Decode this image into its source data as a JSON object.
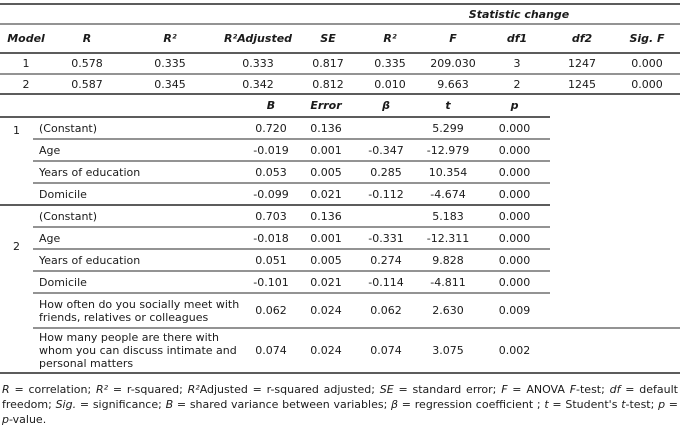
{
  "summary": {
    "stat_change_label": "Statistic change",
    "headers": {
      "model": "Model",
      "r": "R",
      "r2": "R²",
      "r2adj": "R²Adjusted",
      "se": "SE",
      "r2chg": "R²",
      "f": "F",
      "df1": "df1",
      "df2": "df2",
      "sigf": "Sig. F"
    },
    "rows": [
      {
        "model": "1",
        "r": "0.578",
        "r2": "0.335",
        "r2adj": "0.333",
        "se": "0.817",
        "r2chg": "0.335",
        "f": "209.030",
        "df1": "3",
        "df2": "1247",
        "sigf": "0.000"
      },
      {
        "model": "2",
        "r": "0.587",
        "r2": "0.345",
        "r2adj": "0.342",
        "se": "0.812",
        "r2chg": "0.010",
        "f": "9.663",
        "df1": "2",
        "df2": "1245",
        "sigf": "0.000"
      }
    ]
  },
  "coefficients": {
    "headers": {
      "b": "B",
      "error": "Error",
      "beta": "β",
      "t": "t",
      "p": "p"
    },
    "groups": [
      {
        "model": "1",
        "rows": [
          {
            "name": "(Constant)",
            "b": "0.720",
            "error": "0.136",
            "beta": "",
            "t": "5.299",
            "p": "0.000"
          },
          {
            "name": "Age",
            "b": "-0.019",
            "error": "0.001",
            "beta": "-0.347",
            "t": "-12.979",
            "p": "0.000"
          },
          {
            "name": "Years of education",
            "b": "0.053",
            "error": "0.005",
            "beta": "0.285",
            "t": "10.354",
            "p": "0.000"
          },
          {
            "name": "Domicile",
            "b": "-0.099",
            "error": "0.021",
            "beta": "-0.112",
            "t": "-4.674",
            "p": "0.000"
          }
        ]
      },
      {
        "model": "2",
        "rows": [
          {
            "name": "(Constant)",
            "b": "0.703",
            "error": "0.136",
            "beta": "",
            "t": "5.183",
            "p": "0.000"
          },
          {
            "name": "Age",
            "b": "-0.018",
            "error": "0.001",
            "beta": "-0.331",
            "t": "-12.311",
            "p": "0.000"
          },
          {
            "name": "Years of education",
            "b": "0.051",
            "error": "0.005",
            "beta": "0.274",
            "t": "9.828",
            "p": "0.000"
          },
          {
            "name": "Domicile",
            "b": "-0.101",
            "error": "0.021",
            "beta": "-0.114",
            "t": "-4.811",
            "p": "0.000"
          },
          {
            "name": "How often do you socially meet with friends, relatives or colleagues",
            "b": "0.062",
            "error": "0.024",
            "beta": "0.062",
            "t": "2.630",
            "p": "0.009"
          },
          {
            "name": "How many people are there with whom you can discuss intimate and personal matters",
            "b": "0.074",
            "error": "0.024",
            "beta": "0.074",
            "t": "3.075",
            "p": "0.002"
          }
        ]
      }
    ]
  },
  "footnote": {
    "segments": [
      {
        "t": "R",
        "i": true
      },
      {
        "t": " = correlation; ",
        "i": false
      },
      {
        "t": "R²",
        "i": true
      },
      {
        "t": " = r-squared; ",
        "i": false
      },
      {
        "t": "R²",
        "i": true
      },
      {
        "t": "Adjusted = r-squared adjusted; ",
        "i": false
      },
      {
        "t": "SE",
        "i": true
      },
      {
        "t": " = standard error; ",
        "i": false
      },
      {
        "t": "F",
        "i": true
      },
      {
        "t": " = ANOVA  ",
        "i": false
      },
      {
        "t": "F",
        "i": true
      },
      {
        "t": "-test; ",
        "i": false
      },
      {
        "t": "df",
        "i": true
      },
      {
        "t": " = default freedom; ",
        "i": false
      },
      {
        "t": "Sig.",
        "i": true
      },
      {
        "t": " = significance;  ",
        "i": false
      },
      {
        "t": "B",
        "i": true
      },
      {
        "t": " =  shared variance between variables;  ",
        "i": false
      },
      {
        "t": "β",
        "i": true
      },
      {
        "t": " = regression coefficient ; ",
        "i": false
      },
      {
        "t": "t",
        "i": true
      },
      {
        "t": " =  Student's ",
        "i": false
      },
      {
        "t": "t",
        "i": true
      },
      {
        "t": "-test; ",
        "i": false
      },
      {
        "t": "p",
        "i": true
      },
      {
        "t": " = ",
        "i": false
      },
      {
        "t": "p",
        "i": true
      },
      {
        "t": "-value.",
        "i": false
      }
    ]
  }
}
